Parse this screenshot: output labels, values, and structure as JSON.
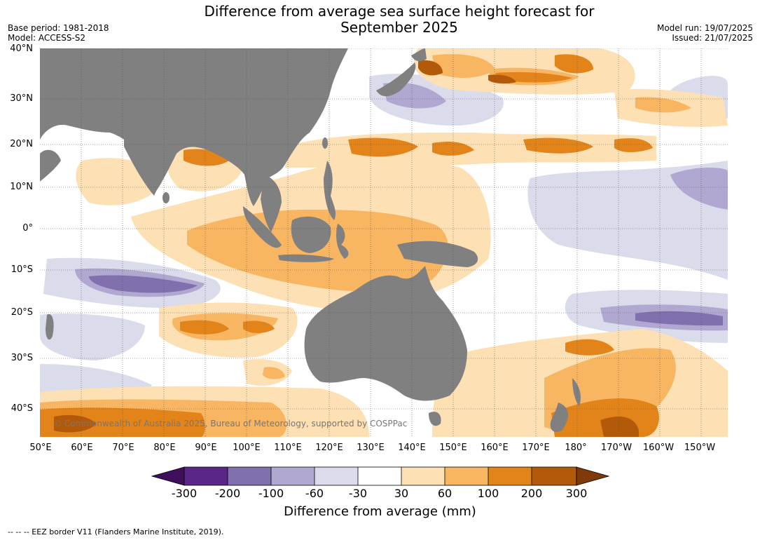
{
  "header": {
    "title_line1": "Difference from average sea surface height forecast for",
    "title_line2": "September 2025",
    "base_period": "Base period: 1981-2018",
    "model": "Model: ACCESS-S2",
    "model_run": "Model run: 19/07/2025",
    "issued": "Issued: 21/07/2025"
  },
  "map": {
    "lat_labels": [
      "40°N",
      "30°N",
      "20°N",
      "10°N",
      "0°",
      "10°S",
      "20°S",
      "30°S",
      "40°S"
    ],
    "lon_labels": [
      "50°E",
      "60°E",
      "70°E",
      "80°E",
      "90°E",
      "100°E",
      "110°E",
      "120°E",
      "130°E",
      "140°E",
      "150°E",
      "160°E",
      "170°E",
      "180°",
      "170°W",
      "160°W",
      "150°W"
    ],
    "copyright": "© Commonwealth of Australia 2025, Bureau of Meteorology, supported by COSPPac",
    "colors": {
      "land": "#808080",
      "ocean_neutral": "#ffffff",
      "gridline": "#555555"
    }
  },
  "colorbar": {
    "ticks": [
      "-300",
      "-200",
      "-100",
      "-60",
      "-30",
      "30",
      "60",
      "100",
      "200",
      "300"
    ],
    "colors": [
      "#3f0f5c",
      "#5a2688",
      "#8070ad",
      "#b0a8d0",
      "#dadbeb",
      "#ffffff",
      "#fde0b4",
      "#f8b562",
      "#e2841a",
      "#b3590a",
      "#7e3a08"
    ],
    "label": "Difference from average (mm)"
  },
  "footnote": "--  --  -- EEZ border V11 (Flanders Marine Institute, 2019)."
}
